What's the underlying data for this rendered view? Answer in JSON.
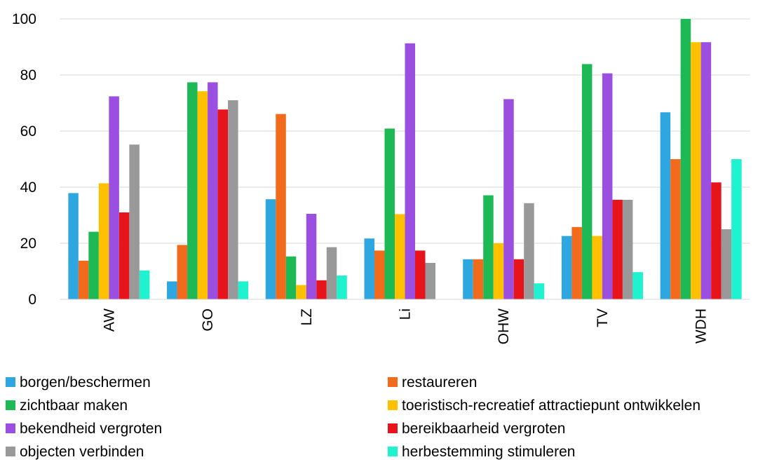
{
  "chart_data": {
    "type": "bar",
    "categories": [
      "AW",
      "GO",
      "LZ",
      "Li",
      "OHW",
      "TV",
      "WDH"
    ],
    "ylim": [
      0,
      100
    ],
    "yticks": [
      0,
      20,
      40,
      60,
      80,
      100
    ],
    "grid": true,
    "legend_placement": "bottom",
    "series": [
      {
        "name": "borgen/beschermen",
        "color": "#2EA7E0",
        "values": [
          37.9,
          6.4,
          35.7,
          21.7,
          14.3,
          22.6,
          66.7
        ]
      },
      {
        "name": "restaureren",
        "color": "#F26B1D",
        "values": [
          13.8,
          19.4,
          66.1,
          17.4,
          14.3,
          25.8,
          50.0
        ]
      },
      {
        "name": "zichtbaar maken",
        "color": "#1DB954",
        "values": [
          24.1,
          77.4,
          15.3,
          60.9,
          37.1,
          83.9,
          100.0
        ]
      },
      {
        "name": "toeristisch-recreatief attractiepunt ontwikkelen",
        "color": "#FFC000",
        "values": [
          41.4,
          74.2,
          5.1,
          30.4,
          20.0,
          22.6,
          91.7
        ]
      },
      {
        "name": "bekendheid vergroten",
        "color": "#9B4FE0",
        "values": [
          72.4,
          77.4,
          30.5,
          91.3,
          71.4,
          80.6,
          91.7
        ]
      },
      {
        "name": "bereikbaarheid vergroten",
        "color": "#E8141C",
        "values": [
          31.0,
          67.7,
          6.8,
          17.4,
          14.3,
          35.5,
          41.7
        ]
      },
      {
        "name": "objecten verbinden",
        "color": "#999999",
        "values": [
          55.2,
          71.0,
          18.6,
          13.0,
          34.3,
          35.5,
          25.0
        ]
      },
      {
        "name": "herbestemming stimuleren",
        "color": "#1FF2CF",
        "values": [
          10.3,
          6.4,
          8.5,
          0,
          5.7,
          9.7,
          50.0
        ]
      }
    ]
  }
}
